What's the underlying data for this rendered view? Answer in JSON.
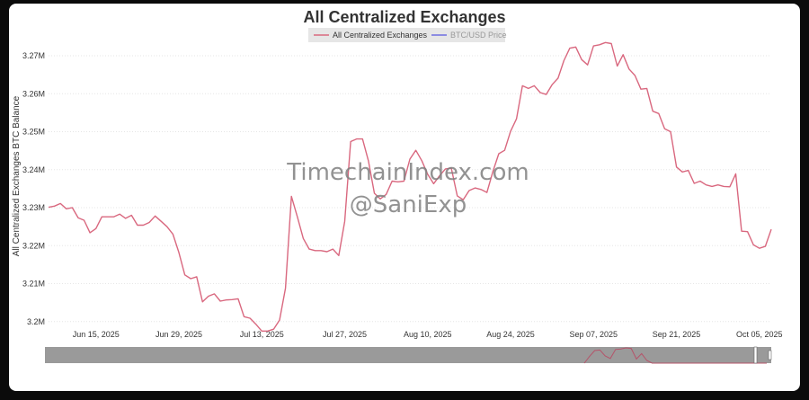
{
  "chart_data": {
    "type": "line",
    "title": "All Centralized Exchanges",
    "ylabel": "All Centralized Exchanges BTC Balance",
    "xlabel": "",
    "legend": {
      "placement": "top-center",
      "items": [
        {
          "name": "All Centralized Exchanges",
          "color": "#d9687f",
          "active": true
        },
        {
          "name": "BTC/USD Price",
          "color": "#6f6fe0",
          "active": false
        }
      ]
    },
    "x_ticks": [
      "Jun 15, 2025",
      "Jun 29, 2025",
      "Jul 13, 2025",
      "Jul 27, 2025",
      "Aug 10, 2025",
      "Aug 24, 2025",
      "Sep 07, 2025",
      "Sep 21, 2025",
      "Oct 05, 2025"
    ],
    "y_ticks": [
      "3.2M",
      "3.21M",
      "3.22M",
      "3.23M",
      "3.24M",
      "3.25M",
      "3.26M",
      "3.27M"
    ],
    "ylim": [
      3.199,
      3.2738
    ],
    "grid": true,
    "series": [
      {
        "name": "All Centralized Exchanges",
        "color": "#d9687f",
        "x_start": "2025-06-07",
        "x_step_days": 1,
        "values": [
          3.2301,
          3.2304,
          3.2311,
          3.2297,
          3.23,
          3.2273,
          3.2267,
          3.2234,
          3.2245,
          3.2276,
          3.2276,
          3.2276,
          3.2283,
          3.2272,
          3.228,
          3.2254,
          3.2254,
          3.2261,
          3.2278,
          3.2264,
          3.225,
          3.223,
          3.2182,
          3.2123,
          3.2113,
          3.2118,
          3.2052,
          3.2067,
          3.2073,
          3.2054,
          3.2057,
          3.2058,
          3.206,
          3.2013,
          3.2009,
          3.1993,
          3.1975,
          3.1975,
          3.198,
          3.2004,
          3.2088,
          3.233,
          3.2276,
          3.2219,
          3.2191,
          3.2187,
          3.2187,
          3.2184,
          3.2191,
          3.2174,
          3.2264,
          3.2474,
          3.2481,
          3.2481,
          3.2423,
          3.2338,
          3.2323,
          3.2335,
          3.237,
          3.2368,
          3.237,
          3.2428,
          3.2451,
          3.2424,
          3.2388,
          3.2363,
          3.2384,
          3.2402,
          3.2404,
          3.2331,
          3.2321,
          3.2345,
          3.2352,
          3.2348,
          3.234,
          3.2395,
          3.2442,
          3.2451,
          3.2501,
          3.2534,
          3.2621,
          3.2614,
          3.2621,
          3.2603,
          3.2598,
          3.2624,
          3.2641,
          3.2687,
          3.272,
          3.2723,
          3.269,
          3.2676,
          3.2726,
          3.2729,
          3.2735,
          3.2732,
          3.2673,
          3.2703,
          3.2665,
          3.2648,
          3.2612,
          3.2614,
          3.2554,
          3.2548,
          3.2508,
          3.25,
          3.2407,
          3.2394,
          3.2398,
          3.2364,
          3.237,
          3.236,
          3.2356,
          3.236,
          3.2356,
          3.2355,
          3.2389,
          3.2238,
          3.2237,
          3.2202,
          3.2193,
          3.2198,
          3.2243
        ]
      }
    ],
    "watermark": [
      "TimechainIndex.com",
      "@SaniExp"
    ]
  }
}
